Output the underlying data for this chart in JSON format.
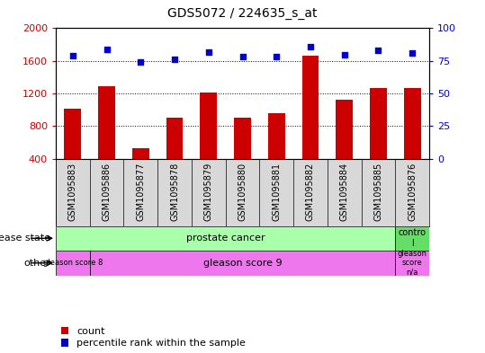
{
  "title": "GDS5072 / 224635_s_at",
  "samples": [
    "GSM1095883",
    "GSM1095886",
    "GSM1095877",
    "GSM1095878",
    "GSM1095879",
    "GSM1095880",
    "GSM1095881",
    "GSM1095882",
    "GSM1095884",
    "GSM1095885",
    "GSM1095876"
  ],
  "counts": [
    1020,
    1290,
    530,
    900,
    1215,
    910,
    960,
    1660,
    1120,
    1270,
    1270
  ],
  "percentile_ranks": [
    79,
    84,
    74,
    76,
    82,
    78,
    78,
    86,
    80,
    83,
    81
  ],
  "ylim_left": [
    400,
    2000
  ],
  "ylim_right": [
    0,
    100
  ],
  "yticks_left": [
    400,
    800,
    1200,
    1600,
    2000
  ],
  "yticks_right": [
    0,
    25,
    50,
    75,
    100
  ],
  "bar_color": "#cc0000",
  "dot_color": "#0000cc",
  "bar_width": 0.5,
  "tick_label_color_left": "#cc0000",
  "tick_label_color_right": "#0000cc",
  "bg_color": "#ffffff",
  "plot_bg_color": "#ffffff",
  "xtick_bg_color": "#d8d8d8",
  "disease_state_color": "#aaffaa",
  "control_color": "#66dd66",
  "other_color": "#ee77ee",
  "disease_state_label": "disease state",
  "other_label": "other",
  "legend_count": "count",
  "legend_percentile": "percentile rank within the sample"
}
